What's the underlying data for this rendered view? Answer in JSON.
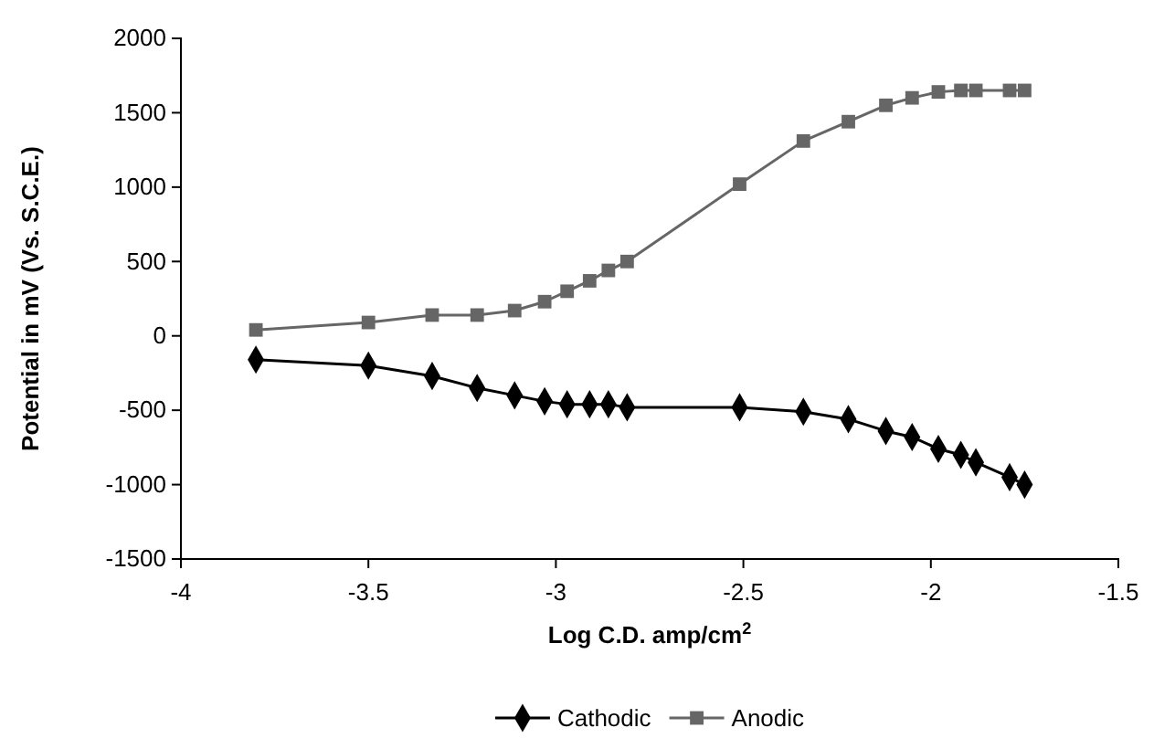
{
  "chart_data": {
    "type": "line",
    "xlabel": "Log C.D. amp/cm$^{2}$",
    "ylabel": "Potential in mV (Vs. S.C.E.)",
    "xlim": [
      -4,
      -1.5
    ],
    "xticks": [
      -4,
      -3.5,
      -3,
      -2.5,
      -2,
      -1.5
    ],
    "ylim": [
      -1500,
      2000
    ],
    "yticks": [
      -1500,
      -1000,
      -500,
      0,
      500,
      1000,
      1500,
      2000
    ],
    "grid": false,
    "legend": "bottom",
    "series": [
      {
        "name": "Cathodic",
        "color": "#000000",
        "marker": "diamond",
        "x": [
          -3.8,
          -3.5,
          -3.33,
          -3.21,
          -3.11,
          -3.03,
          -2.97,
          -2.91,
          -2.86,
          -2.81,
          -2.51,
          -2.34,
          -2.22,
          -2.12,
          -2.05,
          -1.98,
          -1.92,
          -1.88,
          -1.79,
          -1.75
        ],
        "values": [
          -160,
          -200,
          -270,
          -350,
          -400,
          -440,
          -460,
          -460,
          -460,
          -480,
          -480,
          -510,
          -560,
          -640,
          -680,
          -760,
          -800,
          -850,
          -950,
          -1000
        ]
      },
      {
        "name": "Anodic",
        "color": "#666666",
        "marker": "square",
        "x": [
          -3.8,
          -3.5,
          -3.33,
          -3.21,
          -3.11,
          -3.03,
          -2.97,
          -2.91,
          -2.86,
          -2.81,
          -2.51,
          -2.34,
          -2.22,
          -2.12,
          -2.05,
          -1.98,
          -1.92,
          -1.88,
          -1.79,
          -1.75
        ],
        "values": [
          40,
          90,
          140,
          140,
          170,
          230,
          300,
          370,
          440,
          500,
          1020,
          1310,
          1440,
          1550,
          1600,
          1640,
          1650,
          1650,
          1650,
          1650
        ]
      }
    ]
  }
}
